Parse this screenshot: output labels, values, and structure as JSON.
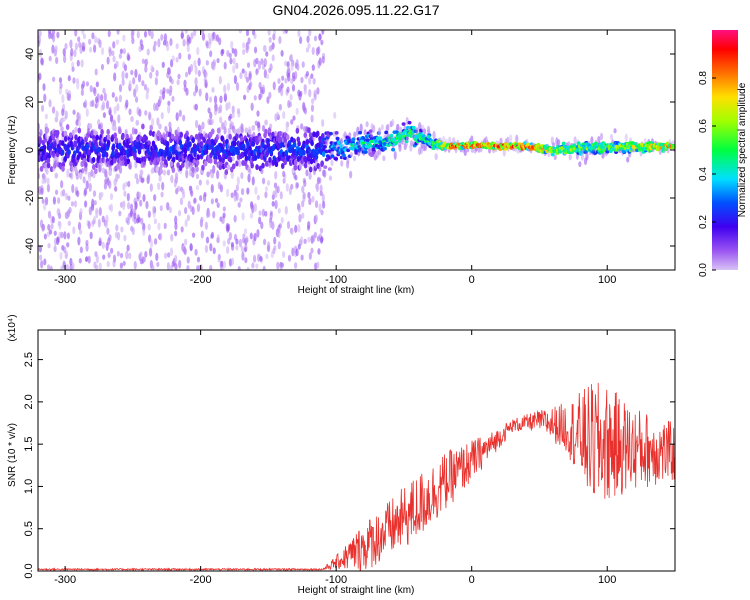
{
  "title": "GN04.2026.095.11.22.G17",
  "chart_data": [
    {
      "type": "heatmap",
      "xlabel": "Height of straight line (km)",
      "ylabel": "Frequency (Hz)",
      "xlim": [
        -320,
        150
      ],
      "ylim": [
        -50,
        50
      ],
      "xticks": [
        -300,
        -200,
        -100,
        0,
        100
      ],
      "yticks": [
        -40,
        -20,
        0,
        20,
        40
      ],
      "colorbar": {
        "label": "Normalized spectral amplitude",
        "range": [
          0,
          1
        ],
        "ticks": [
          "0.0",
          "0.2",
          "0.4",
          "0.6",
          "0.8"
        ],
        "tick_values": [
          0,
          0.2,
          0.4,
          0.6,
          0.8
        ]
      },
      "ridge": [
        {
          "x": -320,
          "center": 0,
          "spread": 8,
          "amp": 0.25
        },
        {
          "x": -120,
          "center": 0,
          "spread": 7,
          "amp": 0.3
        },
        {
          "x": -90,
          "center": 2,
          "spread": 4,
          "amp": 0.45
        },
        {
          "x": -60,
          "center": 4,
          "spread": 3,
          "amp": 0.5
        },
        {
          "x": -45,
          "center": 7,
          "spread": 3,
          "amp": 0.55
        },
        {
          "x": -30,
          "center": 3,
          "spread": 2,
          "amp": 0.55
        },
        {
          "x": -20,
          "center": 1.5,
          "spread": 1,
          "amp": 0.85
        },
        {
          "x": 0,
          "center": 2,
          "spread": 1,
          "amp": 0.9
        },
        {
          "x": 40,
          "center": 1.5,
          "spread": 1,
          "amp": 0.95
        },
        {
          "x": 60,
          "center": 0,
          "spread": 1.5,
          "amp": 0.7
        },
        {
          "x": 90,
          "center": 1,
          "spread": 2,
          "amp": 0.6
        },
        {
          "x": 150,
          "center": 1.5,
          "spread": 1,
          "amp": 0.85
        }
      ]
    },
    {
      "type": "line",
      "xlabel": "Height of straight line (km)",
      "ylabel": "SNR (10 * v/v)",
      "yscale_label": "(x10⁴)",
      "xlim": [
        -320,
        150
      ],
      "ylim": [
        0,
        2.85
      ],
      "xticks": [
        -300,
        -200,
        -100,
        0,
        100
      ],
      "yticks": [
        0,
        0.5,
        1,
        1.5,
        2,
        2.5
      ],
      "ytick_labels": [
        "0.0",
        "0.5",
        "1.0",
        "1.5",
        "2.0",
        "2.5"
      ],
      "color": "#e8302c",
      "envelope": [
        {
          "x": -320,
          "mean": 0.02,
          "noise": 0.01
        },
        {
          "x": -110,
          "mean": 0.02,
          "noise": 0.01
        },
        {
          "x": -100,
          "mean": 0.1,
          "noise": 0.08
        },
        {
          "x": -80,
          "mean": 0.28,
          "noise": 0.3
        },
        {
          "x": -60,
          "mean": 0.5,
          "noise": 0.35
        },
        {
          "x": -40,
          "mean": 0.75,
          "noise": 0.4
        },
        {
          "x": -20,
          "mean": 1.05,
          "noise": 0.35
        },
        {
          "x": 0,
          "mean": 1.3,
          "noise": 0.25
        },
        {
          "x": 15,
          "mean": 1.5,
          "noise": 0.15
        },
        {
          "x": 30,
          "mean": 1.72,
          "noise": 0.08
        },
        {
          "x": 50,
          "mean": 1.78,
          "noise": 0.12
        },
        {
          "x": 70,
          "mean": 1.7,
          "noise": 0.3
        },
        {
          "x": 90,
          "mean": 1.5,
          "noise": 0.75
        },
        {
          "x": 100,
          "mean": 1.5,
          "noise": 0.7
        },
        {
          "x": 120,
          "mean": 1.45,
          "noise": 0.5
        },
        {
          "x": 150,
          "mean": 1.4,
          "noise": 0.35
        }
      ]
    }
  ]
}
